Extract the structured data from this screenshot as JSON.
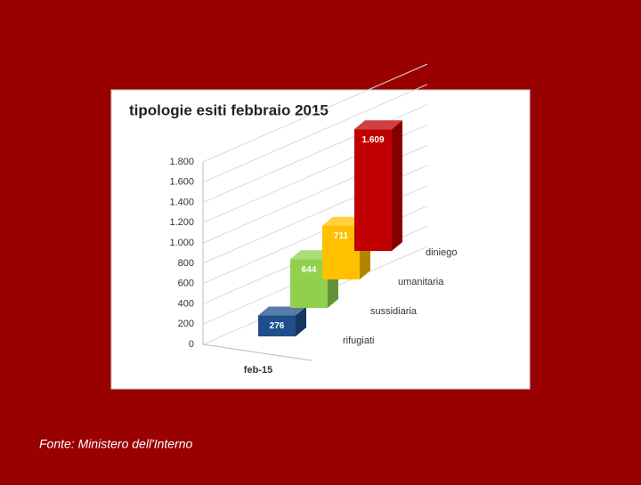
{
  "chart_data": {
    "type": "bar",
    "title": "tipologie esiti febbraio 2015",
    "categories": [
      "feb-15"
    ],
    "series": [
      {
        "name": "rifugiati",
        "color": "#1f4e8c",
        "values": [
          276
        ],
        "value_labels": [
          "276"
        ]
      },
      {
        "name": "sussidiaria",
        "color": "#8fd14f",
        "values": [
          644
        ],
        "value_labels": [
          "644"
        ]
      },
      {
        "name": "umanitaria",
        "color": "#ffc000",
        "values": [
          711
        ],
        "value_labels": [
          "711"
        ]
      },
      {
        "name": "diniego",
        "color": "#c00000",
        "values": [
          1609
        ],
        "value_labels": [
          "1.609"
        ]
      }
    ],
    "ylim": [
      0,
      1800
    ],
    "yticks": [
      0,
      200,
      400,
      600,
      800,
      {
        "value": 1000,
        "label": "1.000"
      },
      {
        "value": 1200,
        "label": "1.200"
      },
      {
        "value": 1400,
        "label": "1.400"
      },
      {
        "value": 1600,
        "label": "1.600"
      },
      {
        "value": 1800,
        "label": "1.800"
      }
    ],
    "grid": true
  },
  "source": "Fonte: Ministero dell'Interno"
}
